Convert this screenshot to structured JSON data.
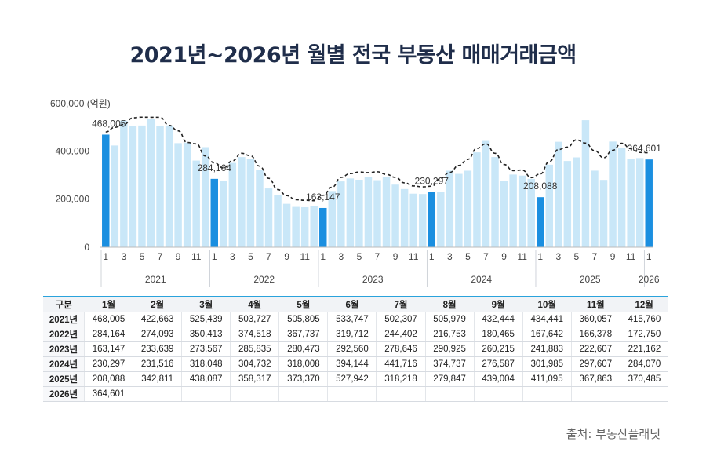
{
  "title": "2021년~2026년 월별 전국 부동산 매매거래금액",
  "source": "출처: 부동산플래닛",
  "chart_data": {
    "type": "bar",
    "ylabel": "(억원)",
    "ylim": [
      0,
      600000
    ],
    "yticks": [
      {
        "value": 0,
        "label": "0"
      },
      {
        "value": 200000,
        "label": "200,000"
      },
      {
        "value": 400000,
        "label": "400,000"
      },
      {
        "value": 600000,
        "label": "600,000"
      }
    ],
    "years": [
      "2021",
      "2022",
      "2023",
      "2024",
      "2025",
      "2026"
    ],
    "month_ticks": [
      "1",
      "3",
      "5",
      "7",
      "9",
      "11"
    ],
    "values": [
      468005,
      422663,
      525439,
      503727,
      505805,
      533747,
      502307,
      505979,
      432444,
      434441,
      360057,
      415760,
      284164,
      274093,
      350413,
      374518,
      367737,
      319712,
      244402,
      216753,
      180465,
      167642,
      166378,
      172750,
      163147,
      233639,
      273567,
      285835,
      280473,
      292560,
      278646,
      290925,
      260215,
      241883,
      222607,
      221162,
      230297,
      231516,
      318048,
      304732,
      318008,
      394144,
      441716,
      374737,
      276587,
      301985,
      297607,
      284070,
      208088,
      342811,
      438087,
      358317,
      373370,
      527942,
      318218,
      279847,
      439004,
      411095,
      367863,
      370485,
      364601
    ],
    "trend_line": "dashed moving average",
    "highlighted_labels": [
      {
        "index": 0,
        "label": "468,005"
      },
      {
        "index": 12,
        "label": "284,164"
      },
      {
        "index": 24,
        "label": "163,147"
      },
      {
        "index": 36,
        "label": "230,297"
      },
      {
        "index": 48,
        "label": "208,088"
      },
      {
        "index": 60,
        "label": "364,601"
      }
    ],
    "colors": {
      "bar": "#c9e7f8",
      "highlight": "#1b8fe0",
      "line": "#222222",
      "axis": "#555555"
    }
  },
  "table": {
    "header": [
      "구분",
      "1월",
      "2월",
      "3월",
      "4월",
      "5월",
      "6월",
      "7월",
      "8월",
      "9월",
      "10월",
      "11월",
      "12월"
    ],
    "rows": [
      [
        "2021년",
        "468,005",
        "422,663",
        "525,439",
        "503,727",
        "505,805",
        "533,747",
        "502,307",
        "505,979",
        "432,444",
        "434,441",
        "360,057",
        "415,760"
      ],
      [
        "2022년",
        "284,164",
        "274,093",
        "350,413",
        "374,518",
        "367,737",
        "319,712",
        "244,402",
        "216,753",
        "180,465",
        "167,642",
        "166,378",
        "172,750"
      ],
      [
        "2023년",
        "163,147",
        "233,639",
        "273,567",
        "285,835",
        "280,473",
        "292,560",
        "278,646",
        "290,925",
        "260,215",
        "241,883",
        "222,607",
        "221,162"
      ],
      [
        "2024년",
        "230,297",
        "231,516",
        "318,048",
        "304,732",
        "318,008",
        "394,144",
        "441,716",
        "374,737",
        "276,587",
        "301,985",
        "297,607",
        "284,070"
      ],
      [
        "2025년",
        "208,088",
        "342,811",
        "438,087",
        "358,317",
        "373,370",
        "527,942",
        "318,218",
        "279,847",
        "439,004",
        "411,095",
        "367,863",
        "370,485"
      ],
      [
        "2026년",
        "364,601",
        "",
        "",
        "",
        "",
        "",
        "",
        "",
        "",
        "",
        "",
        ""
      ]
    ]
  }
}
